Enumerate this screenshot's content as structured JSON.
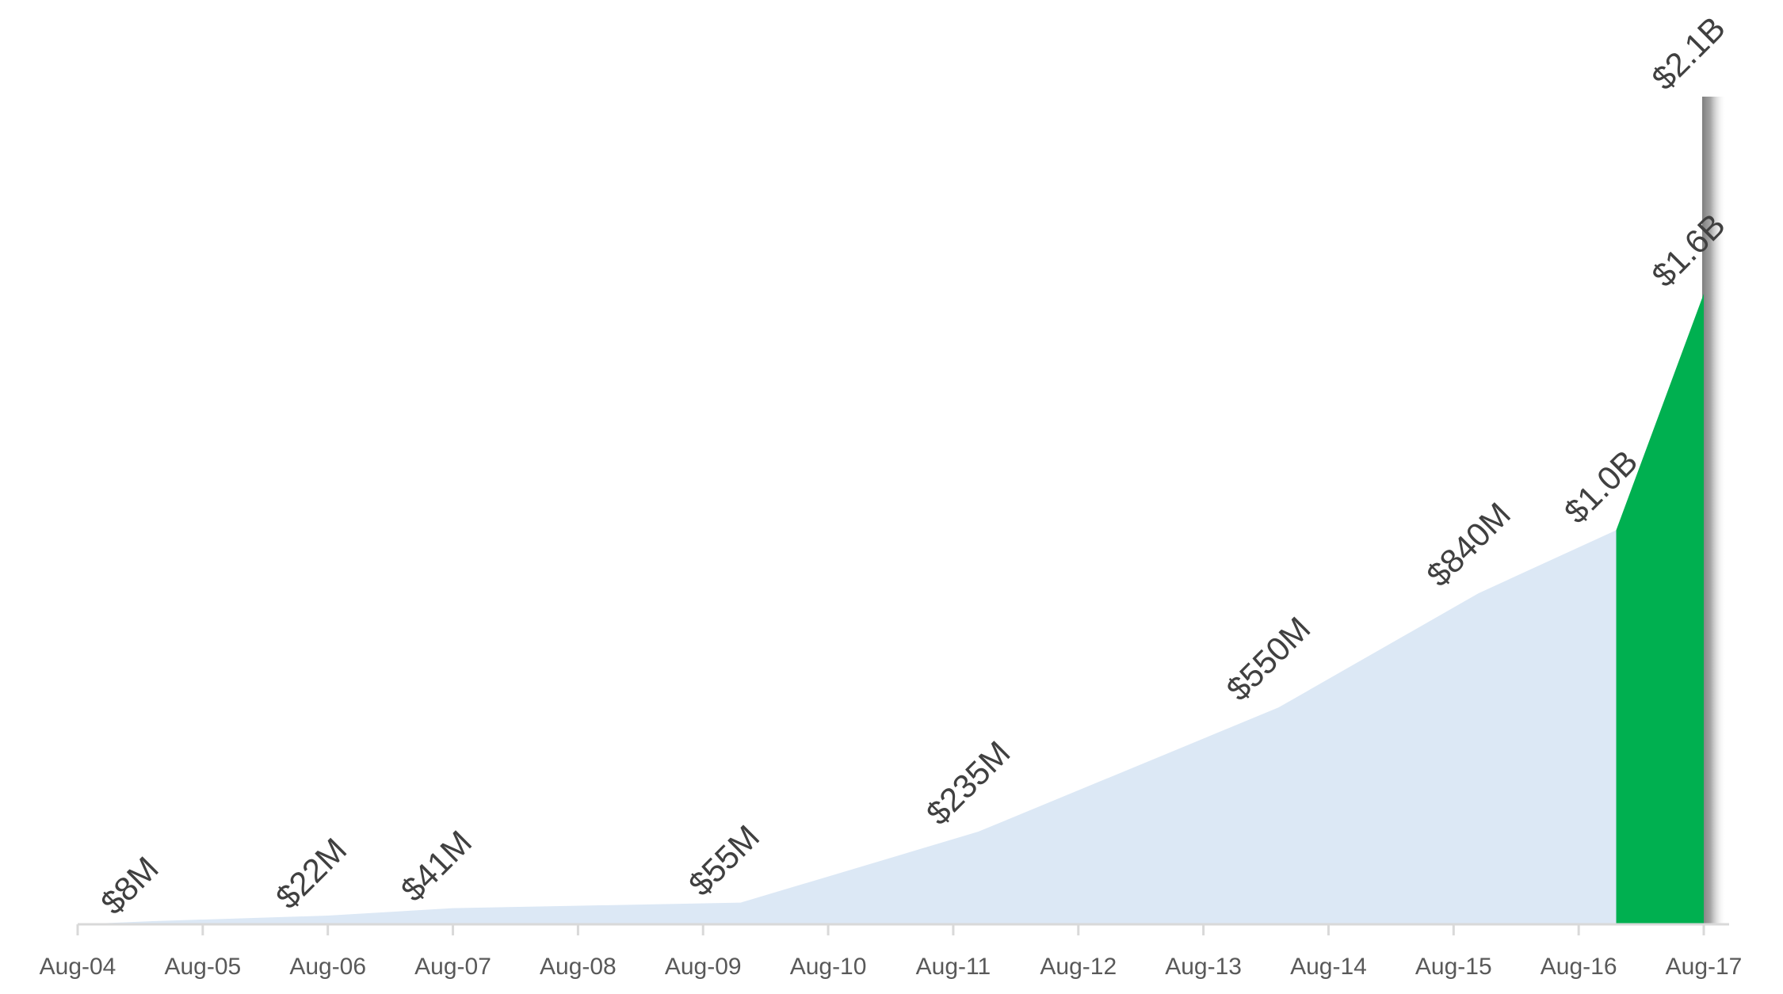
{
  "chart_data": {
    "type": "area",
    "title": "",
    "xlabel": "",
    "ylabel": "",
    "ylim": [
      0,
      2100
    ],
    "y_unit": "$M",
    "grid": false,
    "legend": "none",
    "categories": [
      "Aug-04",
      "Aug-05",
      "Aug-06",
      "Aug-07",
      "Aug-08",
      "Aug-09",
      "Aug-10",
      "Aug-11",
      "Aug-12",
      "Aug-13",
      "Aug-14",
      "Aug-15",
      "Aug-16",
      "Aug-17"
    ],
    "series": [
      {
        "color": "#dce8f5",
        "points": [
          {
            "x": 0.0,
            "y": 0
          },
          {
            "x": 0.6,
            "y": 8
          },
          {
            "x": 2.0,
            "y": 22
          },
          {
            "x": 3.0,
            "y": 41
          },
          {
            "x": 5.3,
            "y": 55
          },
          {
            "x": 7.2,
            "y": 235
          },
          {
            "x": 9.6,
            "y": 550
          },
          {
            "x": 11.2,
            "y": 840
          },
          {
            "x": 12.3,
            "y": 1000
          }
        ]
      },
      {
        "color": "#00b050",
        "points": [
          {
            "x": 12.3,
            "y": 1000
          },
          {
            "x": 13.0,
            "y": 1600
          },
          {
            "x": 13.0,
            "y": 2100
          }
        ]
      }
    ],
    "data_labels": [
      {
        "text": "$8M",
        "x": 0.6,
        "y": 8
      },
      {
        "text": "$22M",
        "x": 2.0,
        "y": 22
      },
      {
        "text": "$41M",
        "x": 3.0,
        "y": 41
      },
      {
        "text": "$55M",
        "x": 5.3,
        "y": 55
      },
      {
        "text": "$235M",
        "x": 7.2,
        "y": 235
      },
      {
        "text": "$550M",
        "x": 9.6,
        "y": 550
      },
      {
        "text": "$840M",
        "x": 11.2,
        "y": 840
      },
      {
        "text": "$1.0B",
        "x": 12.3,
        "y": 1000
      },
      {
        "text": "$1.6B",
        "x": 13.0,
        "y": 1600
      },
      {
        "text": "$2.1B",
        "x": 13.0,
        "y": 2100
      }
    ],
    "reference_bar": {
      "x": 13.0,
      "y": 2100,
      "color": "#8c8c8c"
    }
  }
}
